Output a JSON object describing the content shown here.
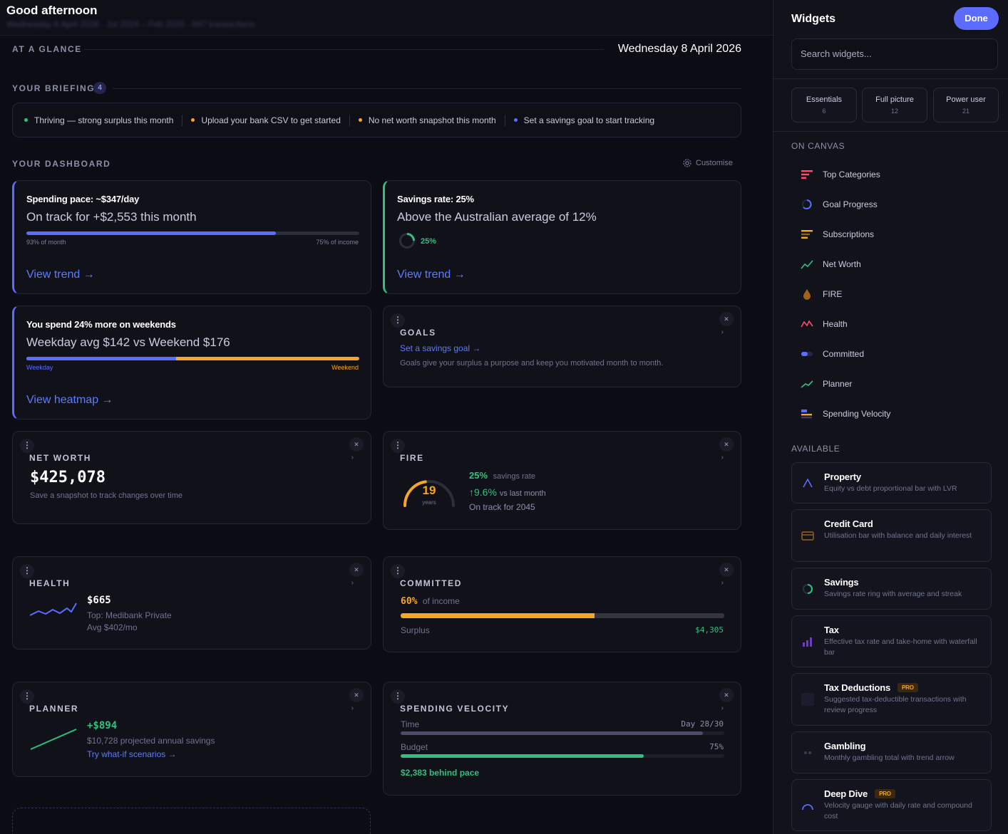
{
  "header": {
    "greeting": "Good afternoon",
    "subtitle": "Wednesday 8 April 2026 · Jul 2024 – Feb 2025 · 847 transactions"
  },
  "glance": {
    "label": "AT A GLANCE",
    "date": "Wednesday 8 April 2026"
  },
  "briefing": {
    "label": "YOUR BRIEFING",
    "count": "4",
    "items": [
      {
        "text": "Thriving — strong surplus this month",
        "color": "#2ec27e"
      },
      {
        "text": "Upload your bank CSV to get started",
        "color": "#f5a623"
      },
      {
        "text": "No net worth snapshot this month",
        "color": "#f5a623"
      },
      {
        "text": "Set a savings goal to start tracking",
        "color": "#5b6cff"
      }
    ]
  },
  "dashboard": {
    "label": "YOUR DASHBOARD",
    "customise": "Customise"
  },
  "pace": {
    "title": "Spending pace: ~$347/day",
    "headline": "On track for +$2,553 this month",
    "progress": 0.75,
    "left_label": "93% of month",
    "right_label": "75% of income",
    "link": "View trend →"
  },
  "savings_rate": {
    "title": "Savings rate: 25%",
    "headline": "Above the Australian average of 12%",
    "value": "25%",
    "progress": 0.25,
    "link": "View trend →"
  },
  "weekend": {
    "title": "You spend 24% more on weekends",
    "headline": "Weekday avg $142 vs Weekend $176",
    "weekday_share": 0.45,
    "left_label": "Weekday",
    "right_label": "Weekend",
    "link": "View heatmap →"
  },
  "goals": {
    "title": "GOALS",
    "link": "Set a savings goal →",
    "desc": "Goals give your surplus a purpose and keep you motivated month to month."
  },
  "networth": {
    "title": "NET WORTH",
    "value": "$425,078",
    "desc": "Save a snapshot to track changes over time"
  },
  "fire": {
    "title": "FIRE",
    "years": "19",
    "years_label": "years",
    "gauge": 0.45,
    "rate": "25%",
    "rate_label": "savings rate",
    "change": "↑9.6%",
    "change_label": "vs last month",
    "ontrack": "On track for 2045"
  },
  "health": {
    "title": "HEALTH",
    "value": "$665",
    "top": "Top: Medibank Private",
    "avg": "Avg $402/mo"
  },
  "committed": {
    "title": "COMMITTED",
    "pct": "60%",
    "pct_label": "of income",
    "progress": 0.6,
    "surplus_label": "Surplus",
    "surplus_value": "$4,305"
  },
  "planner": {
    "title": "PLANNER",
    "value": "+$894",
    "desc": "$10,728 projected annual savings",
    "link": "Try what-if scenarios →"
  },
  "velocity": {
    "title": "SPENDING VELOCITY",
    "time_label": "Time",
    "time_value": "Day 28/30",
    "time_progress": 0.933,
    "budget_label": "Budget",
    "budget_value": "75%",
    "budget_progress": 0.75,
    "status": "$2,383 behind pace"
  },
  "colors": {
    "accent": "#5b6cff",
    "green": "#2ec27e",
    "amber": "#f5a623",
    "red": "#ff4d6d"
  },
  "panel": {
    "title": "Widgets",
    "done": "Done",
    "search_placeholder": "Search widgets...",
    "presets": [
      {
        "name": "Essentials",
        "count": "6"
      },
      {
        "name": "Full picture",
        "count": "12"
      },
      {
        "name": "Power user",
        "count": "21"
      }
    ],
    "on_canvas_label": "ON CANVAS",
    "on_canvas": [
      {
        "label": "Top Categories",
        "icon": "bars-icon"
      },
      {
        "label": "Goal Progress",
        "icon": "ring-icon"
      },
      {
        "label": "Subscriptions",
        "icon": "list-icon"
      },
      {
        "label": "Net Worth",
        "icon": "trend-up-icon"
      },
      {
        "label": "FIRE",
        "icon": "flame-icon"
      },
      {
        "label": "Health",
        "icon": "pulse-icon"
      },
      {
        "label": "Committed",
        "icon": "toggle-icon"
      },
      {
        "label": "Planner",
        "icon": "trend-line-icon"
      },
      {
        "label": "Spending Velocity",
        "icon": "stack-icon"
      }
    ],
    "available_label": "AVAILABLE",
    "available": [
      {
        "title": "Property",
        "desc": "Equity vs debt proportional bar with LVR",
        "pro": false,
        "icon": "triangle-icon"
      },
      {
        "title": "Credit Card",
        "desc": "Utilisation bar with balance and daily interest",
        "pro": false,
        "icon": "card-icon"
      },
      {
        "title": "Savings",
        "desc": "Savings rate ring with average and streak",
        "pro": false,
        "icon": "ring-icon"
      },
      {
        "title": "Tax",
        "desc": "Effective tax rate and take-home with waterfall bar",
        "pro": false,
        "icon": "chart-icon"
      },
      {
        "title": "Tax Deductions",
        "desc": "Suggested tax-deductible transactions with review progress",
        "pro": true,
        "icon": "square-icon"
      },
      {
        "title": "Gambling",
        "desc": "Monthly gambling total with trend arrow",
        "pro": false,
        "icon": "dots-icon"
      },
      {
        "title": "Deep Dive",
        "desc": "Velocity gauge with daily rate and compound cost",
        "pro": true,
        "icon": "gauge-icon"
      }
    ],
    "pro_label": "PRO"
  }
}
